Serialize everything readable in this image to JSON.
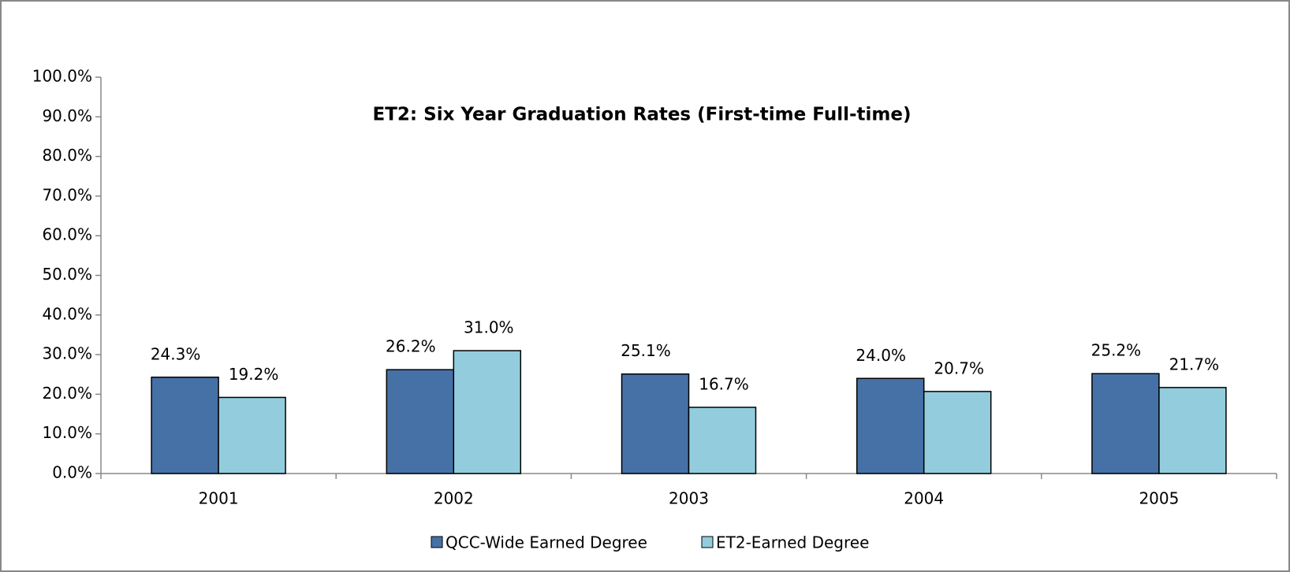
{
  "chart_data": {
    "type": "bar",
    "title": "ET2: Six Year Graduation Rates (First-time Full-time)",
    "categories": [
      "2001",
      "2002",
      "2003",
      "2004",
      "2005"
    ],
    "series": [
      {
        "name": "QCC-Wide Earned Degree",
        "color": "#4671a6",
        "values": [
          24.3,
          26.2,
          25.1,
          24.0,
          25.2
        ],
        "value_labels": [
          "24.3%",
          "26.2%",
          "25.1%",
          "24.0%",
          "25.2%"
        ]
      },
      {
        "name": "ET2-Earned Degree",
        "color": "#93cddd",
        "values": [
          19.2,
          31.0,
          16.7,
          20.7,
          21.7
        ],
        "value_labels": [
          "19.2%",
          "31.0%",
          "16.7%",
          "20.7%",
          "21.7%"
        ]
      }
    ],
    "ylim": [
      0,
      100
    ],
    "yticks": [
      {
        "value": 0,
        "label": "0.0%"
      },
      {
        "value": 10,
        "label": "10.0%"
      },
      {
        "value": 20,
        "label": "20.0%"
      },
      {
        "value": 30,
        "label": "30.0%"
      },
      {
        "value": 40,
        "label": "40.0%"
      },
      {
        "value": 50,
        "label": "50.0%"
      },
      {
        "value": 60,
        "label": "60.0%"
      },
      {
        "value": 70,
        "label": "70.0%"
      },
      {
        "value": 80,
        "label": "80.0%"
      },
      {
        "value": 90,
        "label": "90.0%"
      },
      {
        "value": 100,
        "label": "100.0%"
      }
    ],
    "legend": "bottom"
  }
}
